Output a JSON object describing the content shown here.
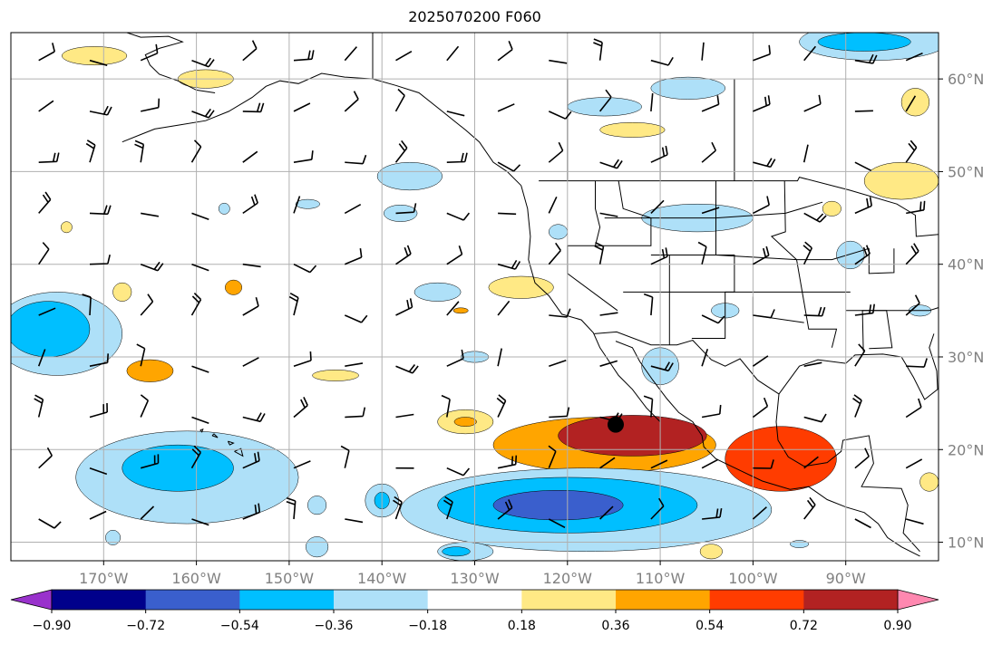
{
  "title": "2025070200 F060",
  "map": {
    "lon_range": [
      -180,
      -80
    ],
    "lat_range": [
      8,
      65
    ],
    "lon_ticks": [
      {
        "lon": -170,
        "label": "170°W"
      },
      {
        "lon": -160,
        "label": "160°W"
      },
      {
        "lon": -150,
        "label": "150°W"
      },
      {
        "lon": -140,
        "label": "140°W"
      },
      {
        "lon": -130,
        "label": "130°W"
      },
      {
        "lon": -120,
        "label": "120°W"
      },
      {
        "lon": -110,
        "label": "110°W"
      },
      {
        "lon": -100,
        "label": "100°W"
      },
      {
        "lon": -90,
        "label": "90°W"
      }
    ],
    "lat_ticks": [
      {
        "lat": 60,
        "label": "60°N"
      },
      {
        "lat": 50,
        "label": "50°N"
      },
      {
        "lat": 40,
        "label": "40°N"
      },
      {
        "lat": 30,
        "label": "30°N"
      },
      {
        "lat": 20,
        "label": "20°N"
      },
      {
        "lat": 10,
        "label": "10°N"
      }
    ],
    "grid": true,
    "marker": {
      "lon": -114.8,
      "lat": 22.7,
      "color": "#000000"
    }
  },
  "colorbar": {
    "levels": [
      -0.9,
      -0.72,
      -0.54,
      -0.36,
      -0.18,
      0.18,
      0.36,
      0.54,
      0.72,
      0.9
    ],
    "labels": [
      "−0.90",
      "−0.72",
      "−0.54",
      "−0.36",
      "−0.18",
      "0.18",
      "0.36",
      "0.54",
      "0.72",
      "0.90"
    ],
    "colors": [
      "#9932cc",
      "#00008b",
      "#3a5fcd",
      "#00bfff",
      "#aee0f8",
      "#ffffff",
      "#ffe985",
      "#ffa500",
      "#ff3c00",
      "#b22222",
      "#ff88b0"
    ],
    "extend": "both"
  },
  "chart_data": {
    "type": "heatmap",
    "title": "2025070200 F060",
    "xlabel": "",
    "ylabel": "",
    "x_range": [
      -180,
      -80
    ],
    "y_range": [
      8,
      65
    ],
    "levels": [
      -0.9,
      -0.72,
      -0.54,
      -0.36,
      -0.18,
      0.18,
      0.36,
      0.54,
      0.72,
      0.9
    ],
    "anomaly_regions": [
      {
        "lon": -113,
        "lat": 21.5,
        "rx": 8,
        "ry": 2.2,
        "value": 0.72
      },
      {
        "lon": -97,
        "lat": 19,
        "rx": 6,
        "ry": 3.5,
        "value": 0.54
      },
      {
        "lon": -116,
        "lat": 20.5,
        "rx": 12,
        "ry": 3,
        "value": 0.36
      },
      {
        "lon": -121,
        "lat": 14,
        "rx": 7,
        "ry": 1.6,
        "value": -0.72
      },
      {
        "lon": -120,
        "lat": 14,
        "rx": 14,
        "ry": 3,
        "value": -0.54
      },
      {
        "lon": -118,
        "lat": 13.5,
        "rx": 20,
        "ry": 4.5,
        "value": -0.36
      },
      {
        "lon": -176,
        "lat": 33,
        "rx": 4.5,
        "ry": 3,
        "value": -0.54
      },
      {
        "lon": -175,
        "lat": 32.5,
        "rx": 7,
        "ry": 4.5,
        "value": -0.36
      },
      {
        "lon": -162,
        "lat": 18,
        "rx": 6,
        "ry": 2.5,
        "value": -0.54
      },
      {
        "lon": -161,
        "lat": 17,
        "rx": 12,
        "ry": 5,
        "value": -0.36
      },
      {
        "lon": -165,
        "lat": 28.5,
        "rx": 2.5,
        "ry": 1.2,
        "value": 0.36
      },
      {
        "lon": -106,
        "lat": 45,
        "rx": 6,
        "ry": 1.5,
        "value": -0.36
      },
      {
        "lon": -137,
        "lat": 49.5,
        "rx": 3.5,
        "ry": 1.5,
        "value": -0.36
      },
      {
        "lon": -107,
        "lat": 59,
        "rx": 4,
        "ry": 1.2,
        "value": -0.36
      },
      {
        "lon": -116,
        "lat": 57,
        "rx": 4,
        "ry": 1.0,
        "value": -0.36
      },
      {
        "lon": -87,
        "lat": 64,
        "rx": 8,
        "ry": 2,
        "value": -0.36
      },
      {
        "lon": -88,
        "lat": 64,
        "rx": 5,
        "ry": 1,
        "value": -0.54
      },
      {
        "lon": -84,
        "lat": 49,
        "rx": 4,
        "ry": 2,
        "value": 0.18
      },
      {
        "lon": -171,
        "lat": 62.5,
        "rx": 3.5,
        "ry": 1.0,
        "value": 0.18
      },
      {
        "lon": -159,
        "lat": 60,
        "rx": 3,
        "ry": 1.0,
        "value": 0.18
      },
      {
        "lon": -113,
        "lat": 54.5,
        "rx": 3.5,
        "ry": 0.8,
        "value": 0.18
      },
      {
        "lon": -125,
        "lat": 37.5,
        "rx": 3.5,
        "ry": 1.2,
        "value": 0.18
      },
      {
        "lon": -131,
        "lat": 23,
        "rx": 3,
        "ry": 1.3,
        "value": 0.18
      },
      {
        "lon": -131,
        "lat": 23,
        "rx": 1.2,
        "ry": 0.5,
        "value": 0.36
      },
      {
        "lon": -145,
        "lat": 28,
        "rx": 2.5,
        "ry": 0.6,
        "value": 0.18
      },
      {
        "lon": -134,
        "lat": 37,
        "rx": 2.5,
        "ry": 1.0,
        "value": -0.36
      },
      {
        "lon": -130,
        "lat": 30,
        "rx": 1.5,
        "ry": 0.6,
        "value": -0.36
      },
      {
        "lon": -110,
        "lat": 29,
        "rx": 2,
        "ry": 2,
        "value": -0.36
      },
      {
        "lon": -140,
        "lat": 14.5,
        "rx": 1.8,
        "ry": 1.8,
        "value": -0.36
      },
      {
        "lon": -140,
        "lat": 14.5,
        "rx": 0.8,
        "ry": 0.9,
        "value": -0.54
      },
      {
        "lon": -147,
        "lat": 14,
        "rx": 1,
        "ry": 1,
        "value": -0.36
      },
      {
        "lon": -131,
        "lat": 9,
        "rx": 3,
        "ry": 1,
        "value": -0.36
      },
      {
        "lon": -132,
        "lat": 9,
        "rx": 1.5,
        "ry": 0.5,
        "value": -0.54
      },
      {
        "lon": -147,
        "lat": 9.5,
        "rx": 1.2,
        "ry": 1.1,
        "value": -0.36
      },
      {
        "lon": -169,
        "lat": 10.5,
        "rx": 0.8,
        "ry": 0.8,
        "value": -0.36
      },
      {
        "lon": -103,
        "lat": 35,
        "rx": 1.5,
        "ry": 0.8,
        "value": -0.36
      },
      {
        "lon": -89.5,
        "lat": 41,
        "rx": 1.5,
        "ry": 1.5,
        "value": -0.36
      },
      {
        "lon": -82,
        "lat": 35,
        "rx": 1.2,
        "ry": 0.6,
        "value": -0.36
      },
      {
        "lon": -82.5,
        "lat": 57.5,
        "rx": 1.5,
        "ry": 1.5,
        "value": 0.18
      },
      {
        "lon": -81,
        "lat": 16.5,
        "rx": 1,
        "ry": 1,
        "value": 0.18
      },
      {
        "lon": -168,
        "lat": 37,
        "rx": 1,
        "ry": 1,
        "value": 0.18
      },
      {
        "lon": -91.5,
        "lat": 46,
        "rx": 1,
        "ry": 0.8,
        "value": 0.18
      },
      {
        "lon": -121,
        "lat": 43.5,
        "rx": 1,
        "ry": 0.8,
        "value": -0.36
      },
      {
        "lon": -157,
        "lat": 46,
        "rx": 0.6,
        "ry": 0.6,
        "value": -0.36
      },
      {
        "lon": -174,
        "lat": 44,
        "rx": 0.6,
        "ry": 0.6,
        "value": 0.18
      },
      {
        "lon": -131.5,
        "lat": 35,
        "rx": 0.8,
        "ry": 0.3,
        "value": 0.36
      },
      {
        "lon": -138,
        "lat": 45.5,
        "rx": 1.8,
        "ry": 0.9,
        "value": -0.36
      },
      {
        "lon": -148,
        "lat": 46.5,
        "rx": 1.3,
        "ry": 0.5,
        "value": -0.36
      },
      {
        "lon": -156,
        "lat": 37.5,
        "rx": 0.9,
        "ry": 0.8,
        "value": 0.36
      },
      {
        "lon": -104.5,
        "lat": 9,
        "rx": 1.2,
        "ry": 0.8,
        "value": 0.18
      },
      {
        "lon": -95,
        "lat": 9.8,
        "rx": 1,
        "ry": 0.4,
        "value": -0.36
      }
    ]
  }
}
